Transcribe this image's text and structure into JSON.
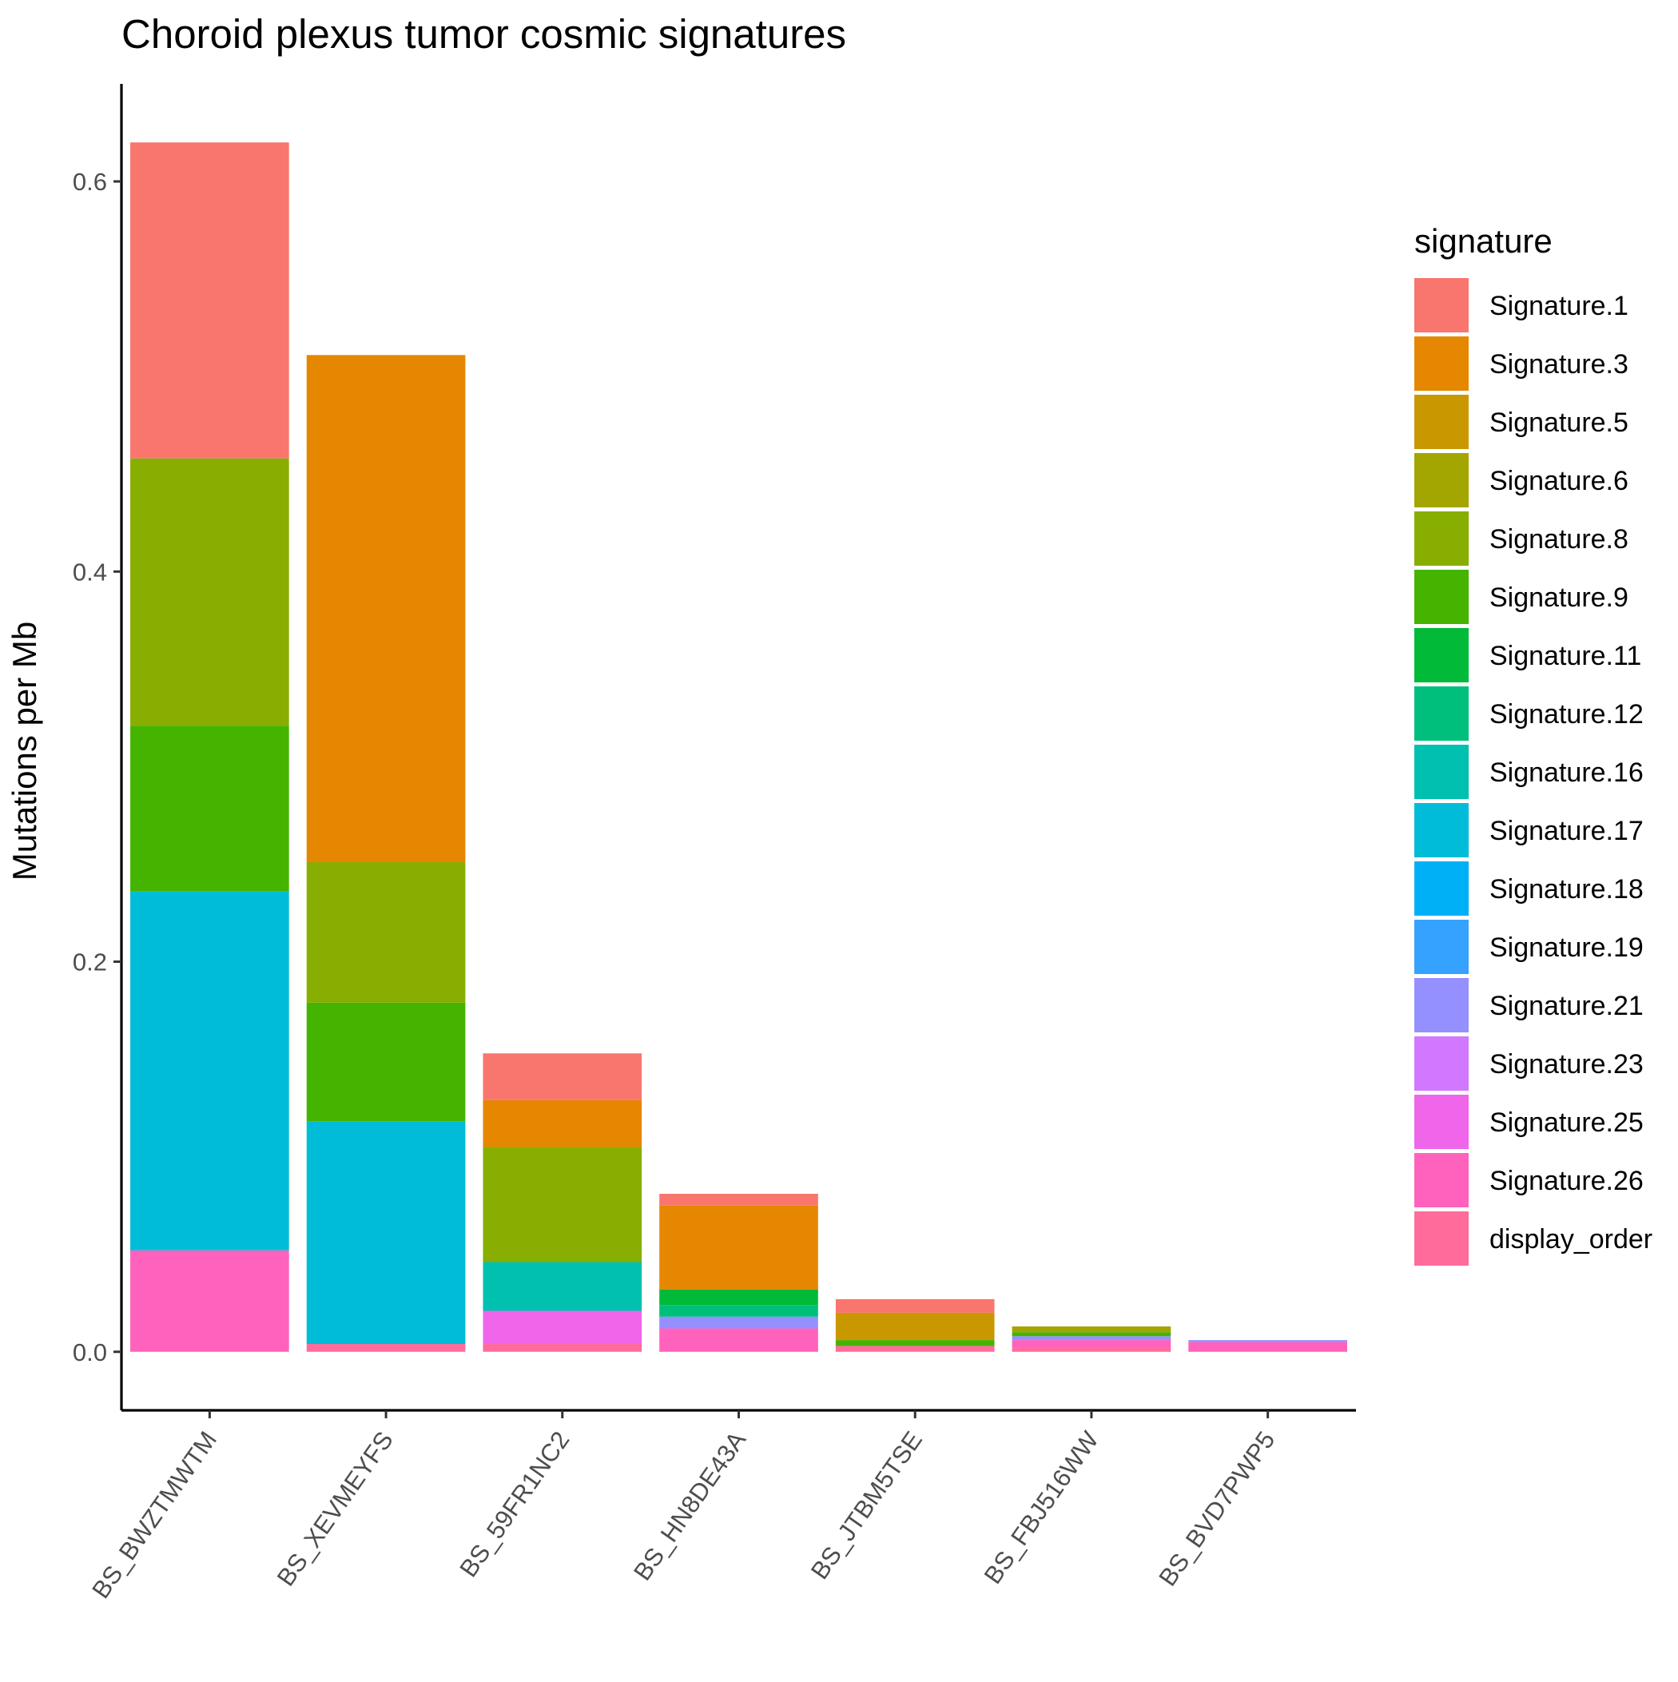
{
  "chart_data": {
    "type": "bar",
    "stacked": true,
    "title": "Choroid plexus tumor cosmic signatures",
    "xlabel": "",
    "ylabel": "Mutations per Mb",
    "ylim": [
      -0.03,
      0.65
    ],
    "yticks": [
      0.0,
      0.2,
      0.4,
      0.6
    ],
    "ytick_labels": [
      "0.0",
      "0.2",
      "0.4",
      "0.6"
    ],
    "grid": false,
    "legend_title": "signature",
    "legend_position": "right",
    "categories": [
      "BS_BWZTMWTM",
      "BS_XEVMEYFS",
      "BS_59FR1NC2",
      "BS_HN8DE43A",
      "BS_JTBM5TSE",
      "BS_FBJ516WW",
      "BS_BVD7PWP5"
    ],
    "series": [
      {
        "name": "Signature.1",
        "color": "#F8766D",
        "values": [
          0.162,
          0.0,
          0.024,
          0.006,
          0.007,
          0.0,
          0.0
        ]
      },
      {
        "name": "Signature.3",
        "color": "#E58700",
        "values": [
          0.0,
          0.26,
          0.024,
          0.043,
          0.0,
          0.0,
          0.0
        ]
      },
      {
        "name": "Signature.5",
        "color": "#C99800",
        "values": [
          0.0,
          0.0,
          0.0,
          0.0,
          0.014,
          0.0,
          0.0
        ]
      },
      {
        "name": "Signature.6",
        "color": "#A3A500",
        "values": [
          0.0,
          0.0,
          0.0,
          0.0,
          0.0,
          0.003,
          0.0
        ]
      },
      {
        "name": "Signature.8",
        "color": "#87AE00",
        "values": [
          0.137,
          0.072,
          0.059,
          0.0,
          0.0,
          0.0,
          0.0
        ]
      },
      {
        "name": "Signature.9",
        "color": "#44B400",
        "values": [
          0.085,
          0.061,
          0.0,
          0.0,
          0.003,
          0.002,
          0.0
        ]
      },
      {
        "name": "Signature.11",
        "color": "#00BA38",
        "values": [
          0.0,
          0.0,
          0.0,
          0.008,
          0.0,
          0.0,
          0.0
        ]
      },
      {
        "name": "Signature.12",
        "color": "#00BF7D",
        "values": [
          0.0,
          0.0,
          0.0,
          0.006,
          0.0,
          0.0,
          0.0
        ]
      },
      {
        "name": "Signature.16",
        "color": "#00C0AF",
        "values": [
          0.0,
          0.0,
          0.025,
          0.0,
          0.0,
          0.0,
          0.0
        ]
      },
      {
        "name": "Signature.17",
        "color": "#00BCD8",
        "values": [
          0.184,
          0.114,
          0.0,
          0.0,
          0.0,
          0.0,
          0.0
        ]
      },
      {
        "name": "Signature.18",
        "color": "#00B0F6",
        "values": [
          0.0,
          0.0,
          0.0,
          0.0,
          0.0,
          0.0,
          0.0
        ]
      },
      {
        "name": "Signature.19",
        "color": "#35A2FF",
        "values": [
          0.0,
          0.0,
          0.0,
          0.0,
          0.0,
          0.0,
          0.0
        ]
      },
      {
        "name": "Signature.21",
        "color": "#9590FF",
        "values": [
          0.0,
          0.0,
          0.0,
          0.006,
          0.0,
          0.002,
          0.001
        ]
      },
      {
        "name": "Signature.23",
        "color": "#D277FF",
        "values": [
          0.0,
          0.0,
          0.0,
          0.0,
          0.0,
          0.0,
          0.0
        ]
      },
      {
        "name": "Signature.25",
        "color": "#F066EA",
        "values": [
          0.0,
          0.0,
          0.017,
          0.0,
          0.0,
          0.0,
          0.0
        ]
      },
      {
        "name": "Signature.26",
        "color": "#FF62BC",
        "values": [
          0.052,
          0.0,
          0.0,
          0.012,
          0.0,
          0.004,
          0.005
        ]
      },
      {
        "name": "display_order",
        "color": "#FF6C9C",
        "values": [
          0.0,
          0.004,
          0.004,
          0.0,
          0.003,
          0.002,
          0.0
        ]
      }
    ]
  }
}
